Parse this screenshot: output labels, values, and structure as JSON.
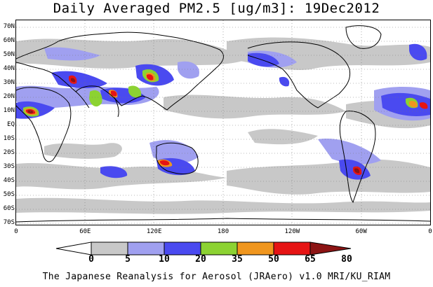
{
  "title": "Daily Averaged PM2.5 [ug/m3]: 19Dec2012",
  "footer": "The Japanese Reanalysis for Aerosol (JRAero) v1.0 MRI/KU_RIAM",
  "lat_labels": [
    "70N",
    "60N",
    "50N",
    "40N",
    "30N",
    "20N",
    "10N",
    "EQ",
    "10S",
    "20S",
    "30S",
    "40S",
    "50S",
    "60S",
    "70S"
  ],
  "lon_labels": [
    "0",
    "60E",
    "120E",
    "180",
    "120W",
    "60W",
    "0"
  ],
  "colorbar": {
    "levels": [
      "0",
      "5",
      "10",
      "20",
      "35",
      "50",
      "65",
      "80"
    ],
    "colors": [
      "#ffffff",
      "#c8c8c8",
      "#a0a0f0",
      "#4a4af0",
      "#8cd232",
      "#f0961e",
      "#e61414",
      "#8c1414"
    ]
  }
}
